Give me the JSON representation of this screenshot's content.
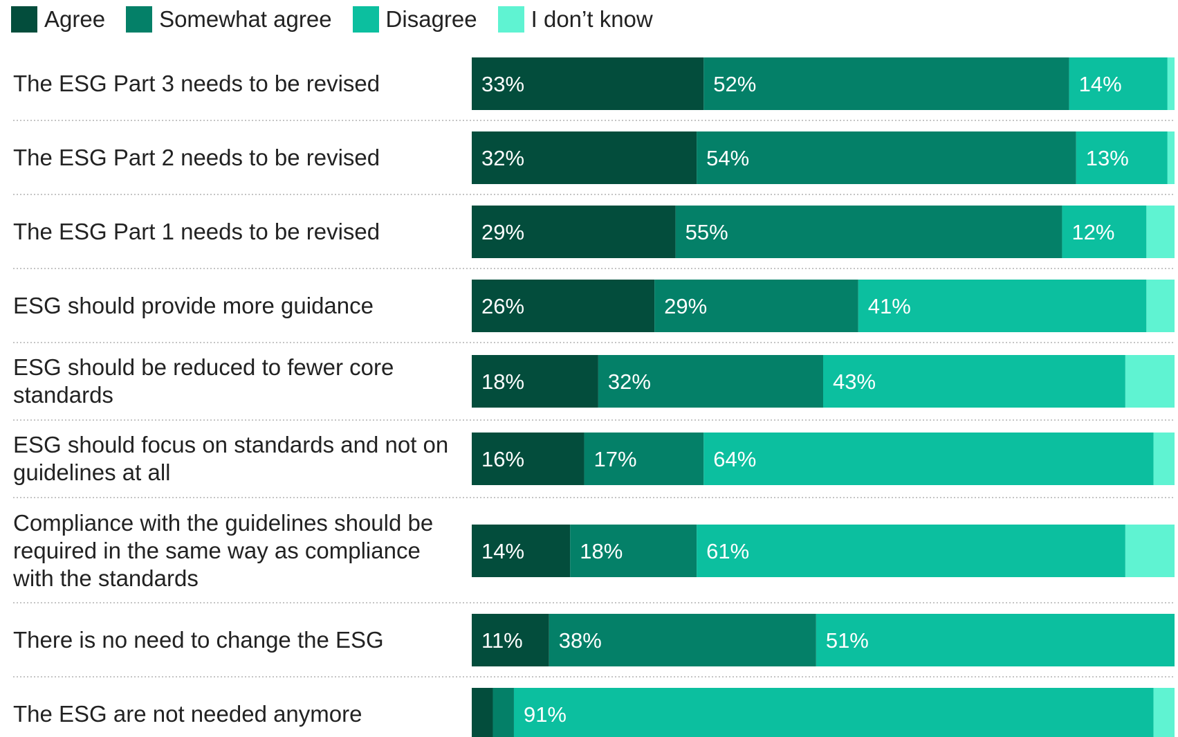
{
  "chart_data": {
    "type": "bar",
    "orientation": "horizontal",
    "stacked": true,
    "normalized_to_100": true,
    "legend_position": "top-left",
    "categories": [
      [
        "The ESG Part 3 needs to be revised"
      ],
      [
        "The ESG Part 2 needs to be revised"
      ],
      [
        "The ESG Part 1 needs to be revised"
      ],
      [
        "ESG should provide more guidance"
      ],
      [
        "ESG should be reduced to fewer core",
        "standards"
      ],
      [
        "ESG should focus on standards and not on",
        "guidelines at all"
      ],
      [
        "Compliance with the guidelines should be",
        "required in the same way as compliance",
        "with the standards"
      ],
      [
        "There is no need to change the ESG"
      ],
      [
        "The ESG are not needed anymore"
      ]
    ],
    "series": [
      {
        "name": "Agree",
        "color": "#034d3c",
        "values": [
          33,
          32,
          29,
          26,
          18,
          16,
          14,
          11,
          3
        ],
        "labels": [
          "33%",
          "32%",
          "29%",
          "26%",
          "18%",
          "16%",
          "14%",
          "11%",
          ""
        ]
      },
      {
        "name": "Somewhat agree",
        "color": "#048068",
        "values": [
          52,
          54,
          55,
          29,
          32,
          17,
          18,
          38,
          3
        ],
        "labels": [
          "52%",
          "54%",
          "55%",
          "29%",
          "32%",
          "17%",
          "18%",
          "38%",
          ""
        ]
      },
      {
        "name": "Disagree",
        "color": "#0cbf9f",
        "values": [
          14,
          13,
          12,
          41,
          43,
          64,
          61,
          51,
          91
        ],
        "labels": [
          "14%",
          "13%",
          "12%",
          "41%",
          "43%",
          "64%",
          "61%",
          "51%",
          "91%"
        ]
      },
      {
        "name": "I don’t know",
        "color": "#5ff3d2",
        "values": [
          1,
          1,
          4,
          4,
          7,
          3,
          7,
          0,
          3
        ],
        "labels": [
          "",
          "",
          "",
          "",
          "",
          "",
          "",
          "",
          ""
        ]
      }
    ],
    "xlim": [
      0,
      100
    ],
    "grid": false,
    "row_separator": "dotted"
  }
}
